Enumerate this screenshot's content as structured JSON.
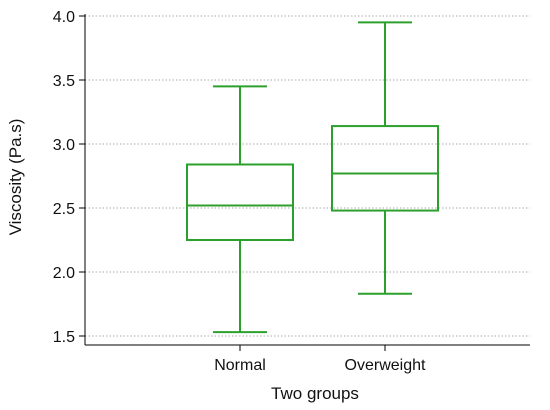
{
  "chart_data": {
    "type": "box",
    "xlabel": "Two groups",
    "ylabel": "Viscosity (Pa.s)",
    "ylim": [
      1.45,
      4.0
    ],
    "yticks": [
      1.5,
      2.0,
      2.5,
      3.0,
      3.5,
      4.0
    ],
    "ytick_labels": [
      "1.5",
      "2.0",
      "2.5",
      "3.0",
      "3.5",
      "4.0"
    ],
    "grid": "horizontal dotted",
    "categories": [
      "Normal",
      "Overweight"
    ],
    "boxes": [
      {
        "category": "Normal",
        "whisker_low": 1.53,
        "q1": 2.25,
        "median": 2.52,
        "q3": 2.84,
        "whisker_high": 3.45
      },
      {
        "category": "Overweight",
        "whisker_low": 1.83,
        "q1": 2.48,
        "median": 2.77,
        "q3": 3.14,
        "whisker_high": 3.95
      }
    ],
    "colors": {
      "box": "#2ca02c",
      "axis": "#000000",
      "grid": "#8c8c8c"
    }
  }
}
